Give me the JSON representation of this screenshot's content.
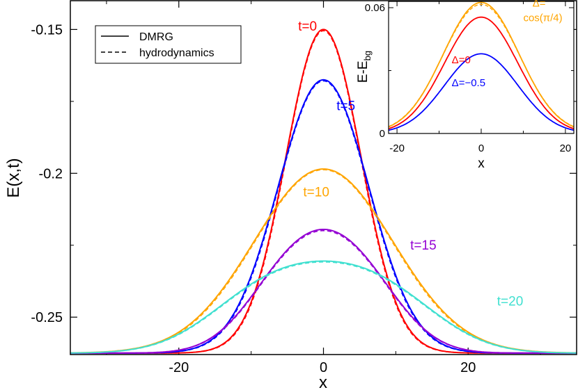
{
  "chart_data": [
    {
      "type": "line",
      "title": "",
      "xlabel": "x",
      "ylabel": "E(x,t)",
      "xlim": [
        -35,
        35
      ],
      "ylim": [
        -0.263,
        -0.14
      ],
      "xticks": [
        -20,
        0,
        20
      ],
      "xtick_labels": [
        "-20",
        "0",
        "20"
      ],
      "yticks": [
        -0.15,
        -0.2,
        -0.25
      ],
      "ytick_labels": [
        "-0.15",
        "-0.2",
        "-0.25"
      ],
      "grid": false,
      "legend": {
        "position": "top-left",
        "entries": [
          {
            "label": "DMRG",
            "style": "solid"
          },
          {
            "label": "hydrodynamics",
            "style": "dashed"
          }
        ]
      },
      "background_energy": -0.2625,
      "series": [
        {
          "name": "t=0",
          "label": "t=0",
          "color": "#ff0000",
          "peak": -0.15,
          "profile": "gauss",
          "sigma": 5.2,
          "label_at": [
            -3.5,
            -0.1504
          ]
        },
        {
          "name": "t=5",
          "label": "t=5",
          "color": "#0000ff",
          "peak": -0.1675,
          "profile": "gauss",
          "sigma": 6.3,
          "label_at": [
            1.8,
            -0.178
          ]
        },
        {
          "name": "t=10",
          "label": "t=10",
          "color": "#ffa500",
          "peak": -0.1985,
          "profile": "gauss",
          "sigma": 9.6,
          "label_at": [
            -2.8,
            -0.208
          ]
        },
        {
          "name": "t=15",
          "label": "t=15",
          "color": "#9400d3",
          "peak": -0.2195,
          "profile": "plateau",
          "flat": 8.5,
          "width": 8.0,
          "label_at": [
            12.0,
            -0.2265
          ]
        },
        {
          "name": "t=20",
          "label": "t=20",
          "color": "#40e0d0",
          "peak": -0.2305,
          "profile": "plateau",
          "flat": 14.0,
          "width": 10.0,
          "label_at": [
            24.0,
            -0.246
          ]
        }
      ]
    },
    {
      "type": "line",
      "title": "",
      "xlabel": "x",
      "ylabel": "E-E",
      "ylabel_sub": "bg",
      "xlim": [
        -22,
        22
      ],
      "ylim": [
        0,
        0.063
      ],
      "xticks": [
        -20,
        0,
        20
      ],
      "xtick_labels": [
        "-20",
        "0",
        "20"
      ],
      "yticks": [
        0,
        0.06
      ],
      "ytick_labels": [
        "0",
        "0.06"
      ],
      "grid": false,
      "series": [
        {
          "name": "Δ=cos(π/4)",
          "label_line1": "Δ=",
          "label_line2": "cos(π/4)",
          "color": "#ffa500",
          "peak": 0.0625,
          "sigma": 9.0,
          "label_at": [
            12.2,
            0.0605
          ],
          "label2_at": [
            10.0,
            0.0535
          ]
        },
        {
          "name": "Δ=0",
          "label": "Δ=0",
          "color": "#ff0000",
          "peak": 0.0555,
          "sigma": 8.7,
          "label_at": [
            -7.0,
            0.0335
          ]
        },
        {
          "name": "Δ=−0.5",
          "label": "Δ=−0.5",
          "color": "#0000ff",
          "peak": 0.038,
          "sigma": 8.7,
          "label_at": [
            -7.0,
            0.0225
          ]
        }
      ]
    }
  ]
}
